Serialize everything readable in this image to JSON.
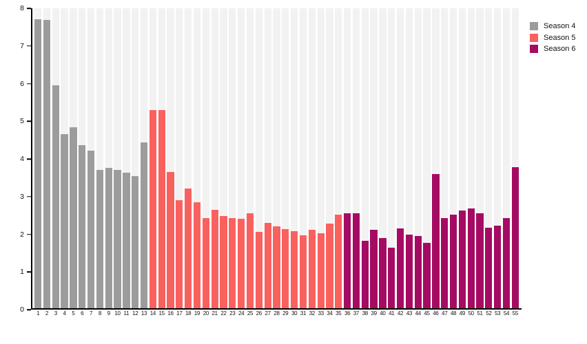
{
  "chart_data": {
    "type": "bar",
    "title": "",
    "xlabel": "",
    "ylabel": "",
    "ylim": [
      0,
      8
    ],
    "yticks": [
      "0",
      "1",
      "2",
      "3",
      "4",
      "5",
      "6",
      "7",
      "8"
    ],
    "grid": "off",
    "background_band_color": "#f2f2f2",
    "axis_color": "#000000",
    "legend_position": "top-right-outside",
    "categories": [
      "1",
      "2",
      "3",
      "4",
      "5",
      "6",
      "7",
      "8",
      "9",
      "10",
      "11",
      "12",
      "13",
      "14",
      "15",
      "16",
      "17",
      "18",
      "19",
      "20",
      "21",
      "22",
      "23",
      "24",
      "25",
      "26",
      "27",
      "28",
      "29",
      "30",
      "31",
      "32",
      "33",
      "34",
      "35",
      "36",
      "37",
      "38",
      "39",
      "40",
      "41",
      "42",
      "43",
      "44",
      "45",
      "46",
      "47",
      "48",
      "49",
      "50",
      "51",
      "52",
      "53",
      "54",
      "55"
    ],
    "series": [
      {
        "name": "Season 4",
        "color": "#9c9c9c",
        "episode_range": "1-13",
        "values": [
          7.7,
          7.68,
          5.95,
          4.65,
          4.83,
          4.35,
          4.21,
          3.68,
          3.75,
          3.69,
          3.62,
          3.53,
          4.42
        ]
      },
      {
        "name": "Season 5",
        "color": "#f9615e",
        "episode_range": "14-35",
        "values": [
          5.28,
          5.28,
          3.64,
          2.88,
          3.2,
          2.83,
          2.4,
          2.63,
          2.46,
          2.41,
          2.39,
          2.53,
          2.03,
          2.28,
          2.19,
          2.11,
          2.05,
          1.94,
          2.09,
          2.0,
          2.26,
          2.5
        ]
      },
      {
        "name": "Season 6",
        "color": "#a50b63",
        "episode_range": "36-55",
        "values": [
          2.53,
          2.53,
          1.8,
          2.1,
          1.88,
          1.61,
          2.13,
          1.96,
          1.93,
          1.74,
          3.57,
          2.41,
          2.49,
          2.6,
          2.66,
          2.53,
          2.14,
          2.21,
          2.4,
          3.77
        ]
      }
    ]
  },
  "legend": {
    "items": [
      {
        "label": "Season 4",
        "color": "#9c9c9c"
      },
      {
        "label": "Season 5",
        "color": "#f9615e"
      },
      {
        "label": "Season 6",
        "color": "#a50b63"
      }
    ]
  }
}
